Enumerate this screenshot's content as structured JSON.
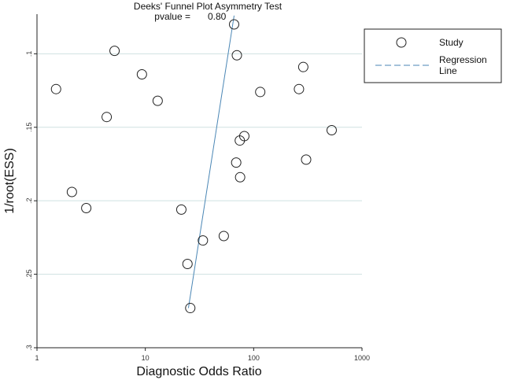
{
  "chart_data": {
    "type": "scatter",
    "title": "Deeks' Funnel Plot Asymmetry Test",
    "subtitle_label": "pvalue =",
    "subtitle_value": "0.80",
    "xlabel": "Diagnostic Odds Ratio",
    "ylabel": "1/root(ESS)",
    "x_scale": "log",
    "xlim": [
      1,
      1000
    ],
    "ylim": [
      0.3,
      0.079
    ],
    "y_inverted": true,
    "x_ticks": [
      1,
      10,
      100,
      1000
    ],
    "x_tick_labels": [
      "1",
      "10",
      "100",
      "1000"
    ],
    "y_ticks": [
      0.1,
      0.15,
      0.2,
      0.25,
      0.3
    ],
    "y_tick_labels": [
      ".1",
      ".15",
      ".2",
      ".25",
      ".3"
    ],
    "grid": "horizontal",
    "legend_position": "right",
    "colors": {
      "points_stroke": "#222222",
      "regression_line": "#4a86b5",
      "grid": "#cfe1e1",
      "axis": "#222222"
    },
    "series": [
      {
        "name": "Study",
        "marker": "hollow-circle",
        "points": [
          {
            "x": 1.5,
            "y": 0.124
          },
          {
            "x": 2.1,
            "y": 0.194
          },
          {
            "x": 2.85,
            "y": 0.205
          },
          {
            "x": 4.4,
            "y": 0.143
          },
          {
            "x": 5.2,
            "y": 0.098
          },
          {
            "x": 9.3,
            "y": 0.114
          },
          {
            "x": 13,
            "y": 0.132
          },
          {
            "x": 21.5,
            "y": 0.206
          },
          {
            "x": 24.5,
            "y": 0.243
          },
          {
            "x": 26,
            "y": 0.273
          },
          {
            "x": 34,
            "y": 0.227
          },
          {
            "x": 53,
            "y": 0.224
          },
          {
            "x": 66,
            "y": 0.08
          },
          {
            "x": 69,
            "y": 0.174
          },
          {
            "x": 70,
            "y": 0.101
          },
          {
            "x": 74.5,
            "y": 0.159
          },
          {
            "x": 75,
            "y": 0.184
          },
          {
            "x": 82,
            "y": 0.156
          },
          {
            "x": 115,
            "y": 0.126
          },
          {
            "x": 262,
            "y": 0.124
          },
          {
            "x": 287,
            "y": 0.109
          },
          {
            "x": 305,
            "y": 0.172
          },
          {
            "x": 525,
            "y": 0.152
          }
        ]
      },
      {
        "name": "Regression Line",
        "name_line1": "Regression",
        "name_line2": "Line",
        "type": "line",
        "style": "dashed",
        "points": [
          {
            "x": 25,
            "y": 0.273
          },
          {
            "x": 66,
            "y": 0.074
          }
        ]
      }
    ]
  }
}
